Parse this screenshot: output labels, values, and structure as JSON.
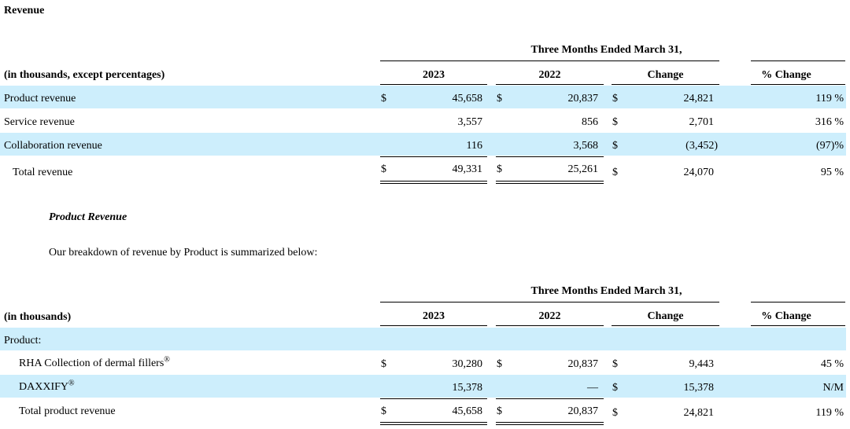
{
  "title": "Revenue",
  "table1": {
    "period_header": "Three Months Ended March 31,",
    "unit_label": "(in thousands, except percentages)",
    "columns": [
      "2023",
      "2022",
      "Change",
      "% Change"
    ],
    "rows": [
      {
        "label": "Product revenue",
        "cur1": "$",
        "v2023": "45,658",
        "cur2": "$",
        "v2022": "20,837",
        "cur3": "$",
        "change": "24,821",
        "pct": "119 %"
      },
      {
        "label": "Service revenue",
        "cur1": "",
        "v2023": "3,557",
        "cur2": "",
        "v2022": "856",
        "cur3": "$",
        "change": "2,701",
        "pct": "316 %"
      },
      {
        "label": "Collaboration revenue",
        "cur1": "",
        "v2023": "116",
        "cur2": "",
        "v2022": "3,568",
        "cur3": "$",
        "change": "(3,452)",
        "pct": "(97)%"
      },
      {
        "label": "Total revenue",
        "cur1": "$",
        "v2023": "49,331",
        "cur2": "$",
        "v2022": "25,261",
        "cur3": "$",
        "change": "24,070",
        "pct": "95 %"
      }
    ]
  },
  "section_heading": "Product Revenue",
  "intro_text": "Our breakdown of revenue by Product is summarized below:",
  "table2": {
    "period_header": "Three Months Ended March 31,",
    "unit_label": "(in thousands)",
    "columns": [
      "2023",
      "2022",
      "Change",
      "% Change"
    ],
    "group_label": "Product:",
    "registered_mark": "®",
    "rows": [
      {
        "label": "RHA Collection of dermal fillers",
        "cur1": "$",
        "v2023": "30,280",
        "cur2": "$",
        "v2022": "20,837",
        "cur3": "$",
        "change": "9,443",
        "pct": "45 %"
      },
      {
        "label": "DAXXIFY",
        "cur1": "",
        "v2023": "15,378",
        "cur2": "",
        "v2022": "—",
        "cur3": "$",
        "change": "15,378",
        "pct": "N/M"
      },
      {
        "label": "Total product revenue",
        "cur1": "$",
        "v2023": "45,658",
        "cur2": "$",
        "v2022": "20,837",
        "cur3": "$",
        "change": "24,821",
        "pct": "119 %"
      }
    ]
  }
}
